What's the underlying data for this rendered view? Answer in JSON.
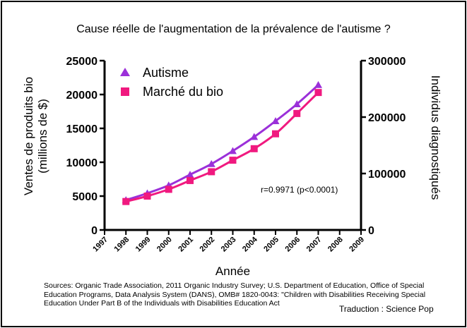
{
  "chart_data": {
    "type": "line",
    "title": "Cause réelle de l'augmentation de la prévalence de l'autisme ?",
    "xlabel": "Année",
    "ylabel_left": "Ventes de produits bio (millions de $)",
    "ylabel_left_lines": [
      "Ventes de produits bio",
      "(millions de $)"
    ],
    "ylabel_right": "Individus diagnostiqués",
    "xlim": [
      1997,
      2009
    ],
    "x_ticks": [
      "1997",
      "1998",
      "1999",
      "2000",
      "2001",
      "2002",
      "2003",
      "2004",
      "2005",
      "2006",
      "2007",
      "2008",
      "2009"
    ],
    "ylim_left": [
      0,
      25000
    ],
    "y_ticks_left": [
      "0",
      "5000",
      "10000",
      "15000",
      "20000",
      "25000"
    ],
    "ylim_right": [
      0,
      300000
    ],
    "y_ticks_right": [
      "0",
      "100000",
      "200000",
      "300000"
    ],
    "grid": false,
    "legend_position": "top-left",
    "annotation": "r=0.9971 (p<0.0001)",
    "series": [
      {
        "name": "Autisme",
        "axis": "right",
        "marker": "triangle",
        "color": "#9b30d9",
        "x": [
          1998,
          1999,
          2000,
          2001,
          2002,
          2003,
          2004,
          2005,
          2006,
          2007
        ],
        "values": [
          53000,
          65000,
          79000,
          98000,
          117000,
          140000,
          165000,
          193000,
          223000,
          257000
        ]
      },
      {
        "name": "Marché du bio",
        "axis": "left",
        "marker": "square",
        "color": "#f0197f",
        "x": [
          1998,
          1999,
          2000,
          2001,
          2002,
          2003,
          2004,
          2005,
          2006,
          2007
        ],
        "values": [
          4200,
          5000,
          6000,
          7300,
          8600,
          10300,
          12000,
          14200,
          17200,
          20300
        ]
      }
    ]
  },
  "footer": {
    "sources": "Sources: Organic Trade Association,  2011 Organic Industry Survey; U.S. Department of Education, Office of Special Education Programs, Data Analysis System (DANS), OMB# 1820-0043: \"Children with Disabilities Receiving Special Education Under Part B of the Individuals with Disabilities Education Act",
    "credit": "Traduction : Science Pop"
  }
}
